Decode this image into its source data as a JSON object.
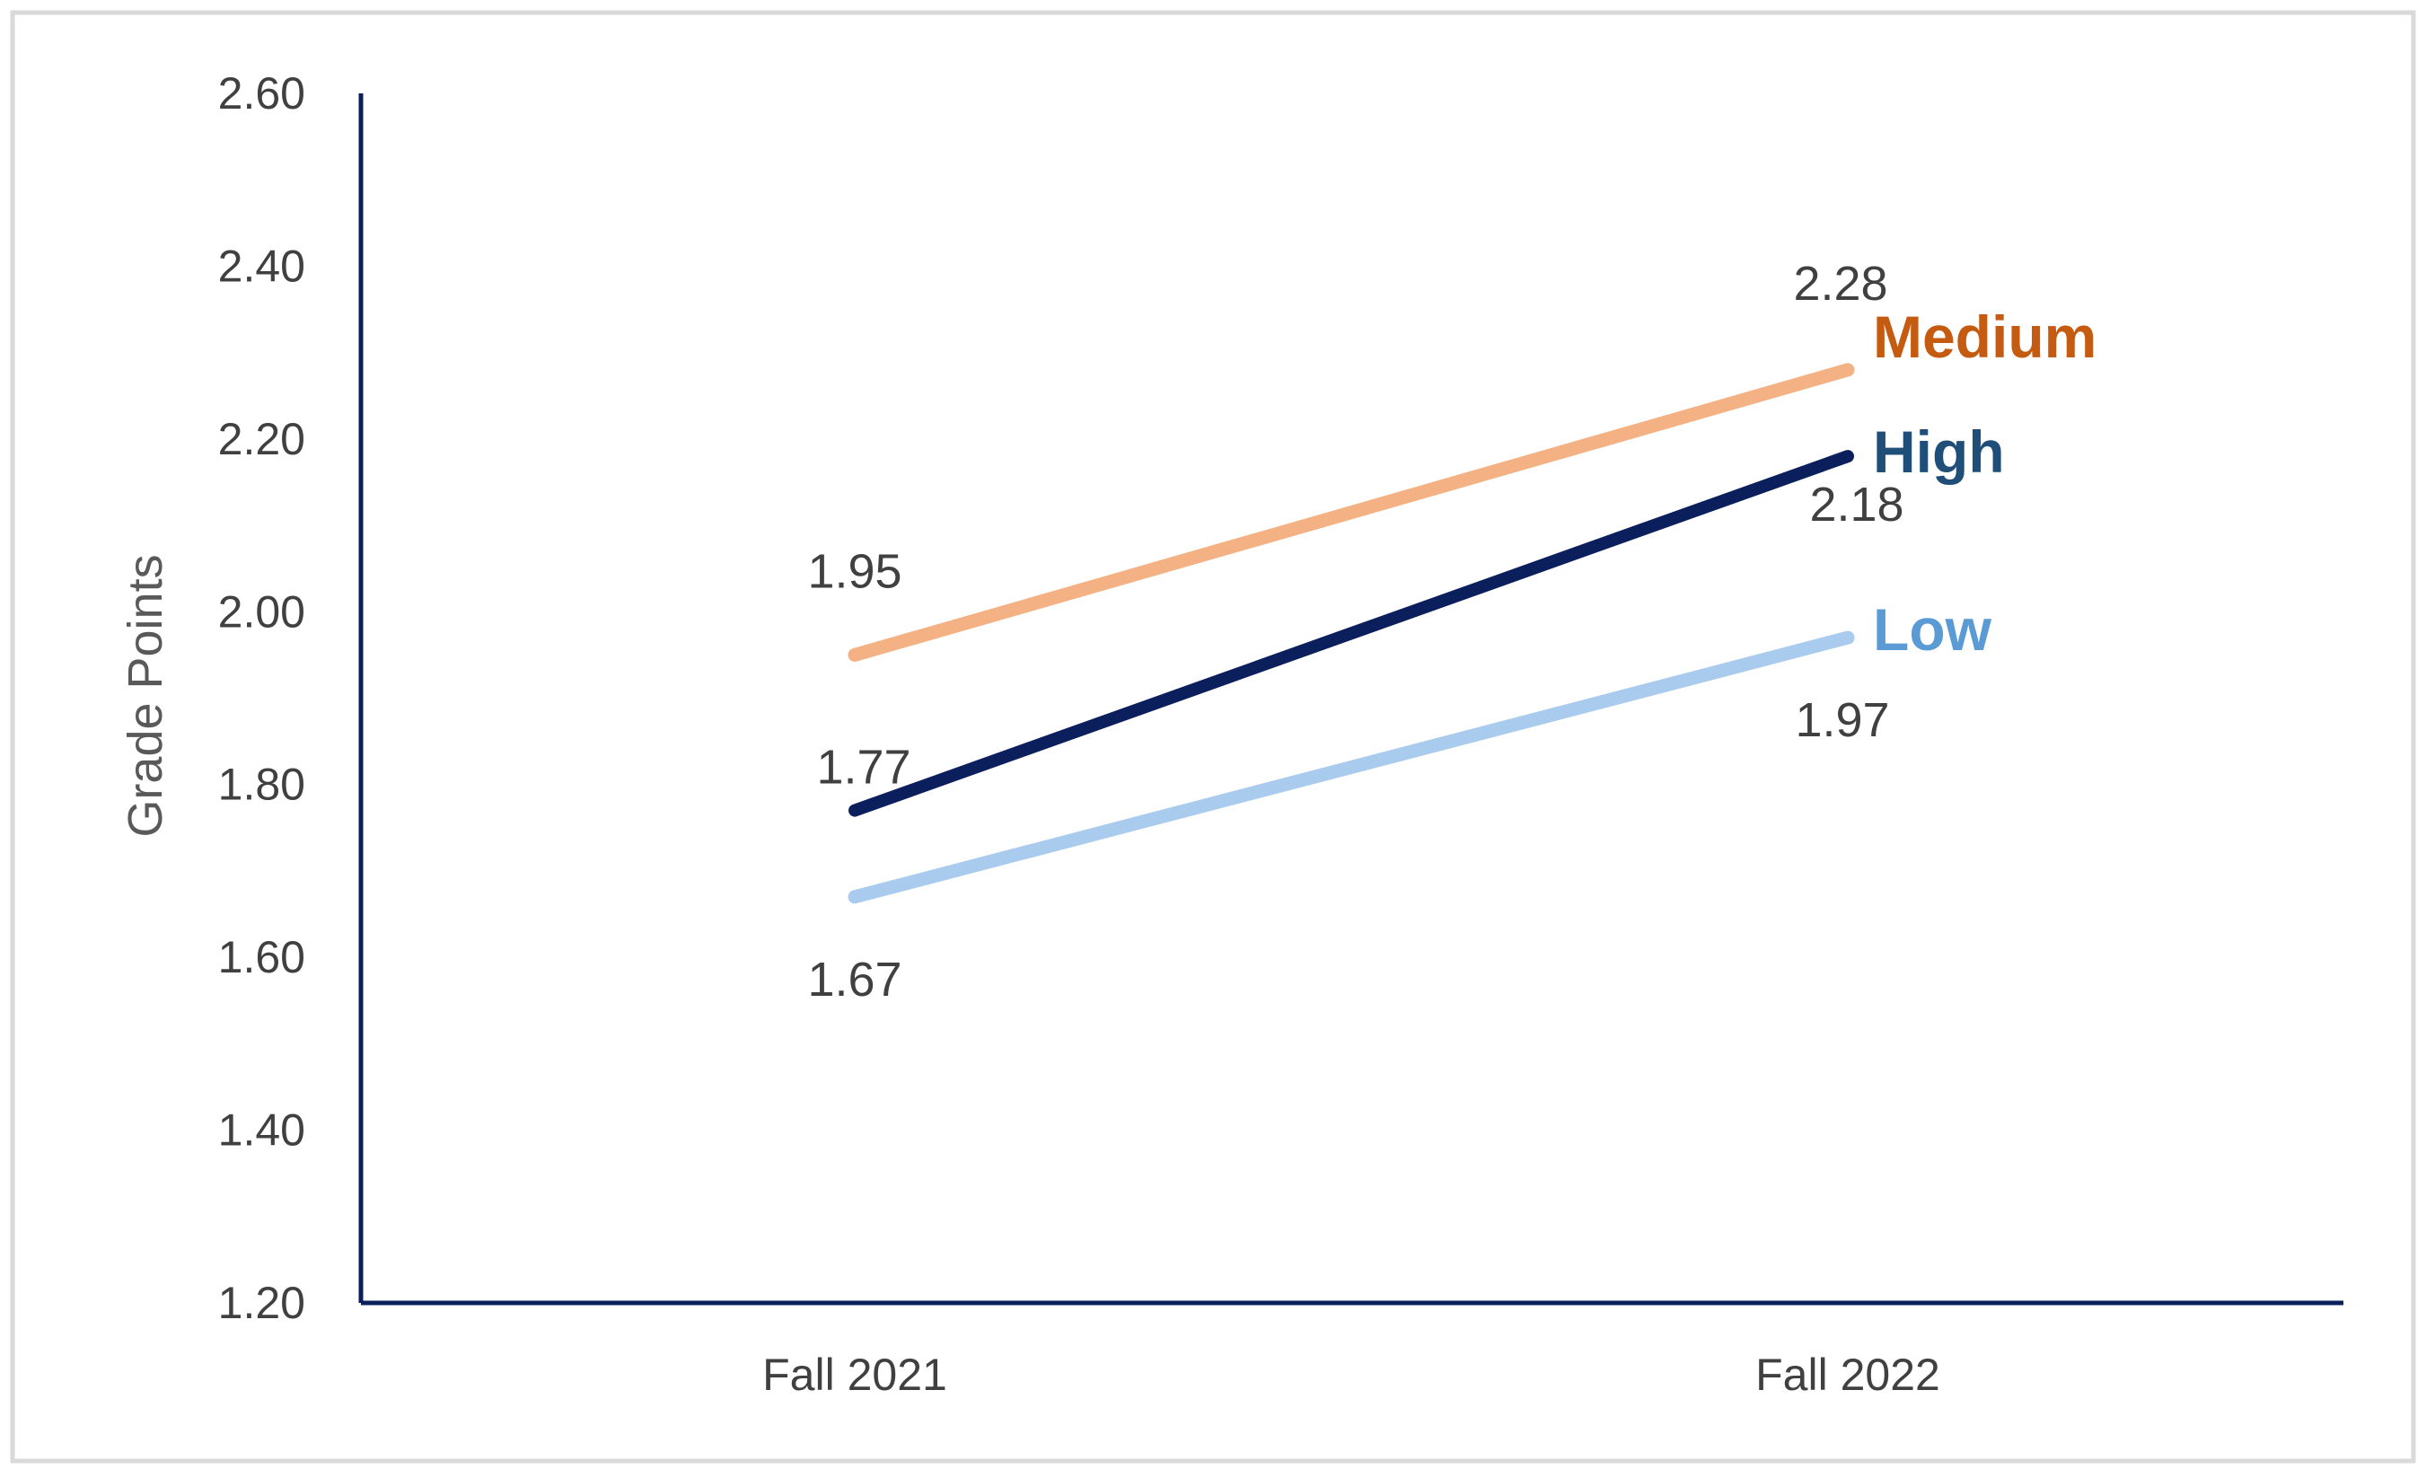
{
  "chart_data": {
    "type": "line",
    "title": "",
    "xlabel": "",
    "ylabel": "Grade Points",
    "categories": [
      "Fall 2021",
      "Fall 2022"
    ],
    "ylim": [
      1.2,
      2.6
    ],
    "yticks": [
      "1.20",
      "1.40",
      "1.60",
      "1.80",
      "2.00",
      "2.20",
      "2.40",
      "2.60"
    ],
    "grid": false,
    "legend": "inline labels at end of lines",
    "series": [
      {
        "name": "Medium",
        "values": [
          1.95,
          2.28
        ],
        "labels": [
          "1.95",
          "2.28"
        ],
        "color": "#F4B183",
        "label_color": "#C55A11"
      },
      {
        "name": "High",
        "values": [
          1.77,
          2.18
        ],
        "labels": [
          "1.77",
          "2.18"
        ],
        "color": "#0B1F5C",
        "label_color": "#1F4E79"
      },
      {
        "name": "Low",
        "values": [
          1.67,
          1.97
        ],
        "labels": [
          "1.67",
          "1.97"
        ],
        "color": "#A9CBEE",
        "label_color": "#5B9BD5"
      }
    ],
    "axis_color": "#0B1F5C",
    "frame_color": "#D9D9D9"
  }
}
